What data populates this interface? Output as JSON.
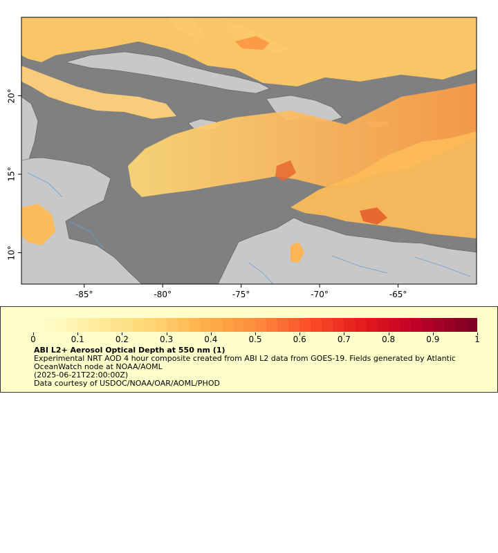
{
  "map": {
    "lon_range": [
      -89,
      -60
    ],
    "lat_range": [
      8,
      25
    ],
    "x_ticks": [
      {
        "value": -85,
        "label": "-85°"
      },
      {
        "value": -80,
        "label": "-80°"
      },
      {
        "value": -75,
        "label": "-75°"
      },
      {
        "value": -70,
        "label": "-70°"
      },
      {
        "value": -65,
        "label": "-65°"
      }
    ],
    "y_ticks": [
      {
        "value": 10,
        "label": "10°"
      },
      {
        "value": 15,
        "label": "15°"
      },
      {
        "value": 20,
        "label": "20°"
      }
    ],
    "colors": {
      "ocean_nodata": "#808080",
      "land": "#c8c8c8",
      "rivers": "#6a9ed6",
      "borders": "#555555"
    }
  },
  "legend": {
    "title": "ABI L2+ Aerosol Optical Depth at 550 nm (1)",
    "description": "Experimental NRT AOD 4 hour composite created from ABI L2 data from GOES-19. Fields generated by Atlantic OceanWatch node at NOAA/AOML",
    "timestamp": "(2025-06-21T22:00:00Z)",
    "credit": "Data courtesy of USDOC/NOAA/OAR/AOML/PHOD",
    "colorbar_ticks": [
      "0",
      "0.1",
      "0.2",
      "0.3",
      "0.4",
      "0.5",
      "0.6",
      "0.7",
      "0.8",
      "0.9",
      "1"
    ],
    "colorbar_range": [
      0,
      1
    ],
    "colorbar_colors": [
      "#ffffcc",
      "#ffeda0",
      "#fed976",
      "#feb24c",
      "#fd8d3c",
      "#fc4e2a",
      "#e31a1c",
      "#bd0026",
      "#800026"
    ]
  }
}
